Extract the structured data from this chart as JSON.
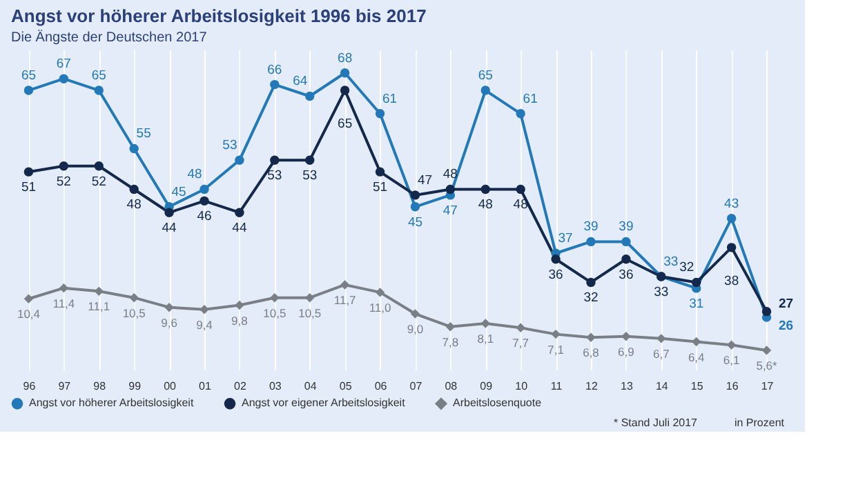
{
  "chart_data": {
    "type": "line",
    "title": "Angst vor höherer Arbeitslosigkeit 1996 bis 2017",
    "subtitle": "Die Ängste der Deutschen 2017",
    "categories": [
      "96",
      "97",
      "98",
      "99",
      "00",
      "01",
      "02",
      "03",
      "04",
      "05",
      "06",
      "07",
      "08",
      "09",
      "10",
      "11",
      "12",
      "13",
      "14",
      "15",
      "16",
      "17"
    ],
    "series": [
      {
        "name": "Angst vor höherer Arbeitslosigkeit",
        "color": "#2379b7",
        "marker": "circle",
        "values": [
          65,
          67,
          65,
          55,
          45,
          48,
          53,
          66,
          64,
          68,
          61,
          45,
          47,
          65,
          61,
          37,
          39,
          39,
          33,
          31,
          43,
          26
        ]
      },
      {
        "name": "Angst vor eigener Arbeitslosigkeit",
        "color": "#13284a",
        "marker": "circle",
        "values": [
          51,
          52,
          52,
          48,
          44,
          46,
          44,
          53,
          53,
          65,
          51,
          47,
          48,
          48,
          48,
          36,
          32,
          36,
          33,
          32,
          38,
          27
        ]
      },
      {
        "name": "Arbeitslosenquote",
        "color": "#7a7f86",
        "marker": "diamond",
        "axis": "y2",
        "values": [
          10.4,
          11.4,
          11.1,
          10.5,
          9.6,
          9.4,
          9.8,
          10.5,
          10.5,
          11.7,
          11.0,
          9.0,
          7.8,
          8.1,
          7.7,
          7.1,
          6.8,
          6.9,
          6.7,
          6.4,
          6.1,
          5.6
        ],
        "value_labels": [
          "10,4",
          "11,4",
          "11,1",
          "10,5",
          "9,6",
          "9,4",
          "9,8",
          "10,5",
          "10,5",
          "11,7",
          "11,0",
          "9,0",
          "7,8",
          "8,1",
          "7,7",
          "7,1",
          "6,8",
          "6,9",
          "6,7",
          "6,4",
          "6,1",
          "5,6*"
        ]
      }
    ],
    "ylim": [
      17,
      72
    ],
    "y2lim": [
      3.8,
      33.6
    ],
    "data_labels": true,
    "grid": "x",
    "tick_labels": "x",
    "legend": "bottom",
    "line_style": "solid",
    "annotations": [
      "* Stand Juli 2017",
      "in Prozent"
    ]
  }
}
